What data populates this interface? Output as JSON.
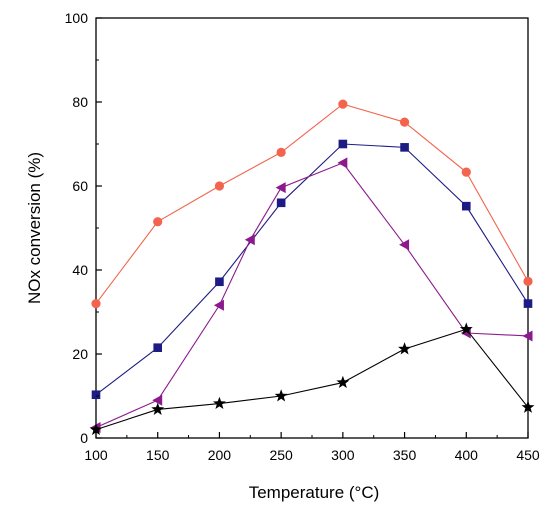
{
  "chart_data": {
    "type": "line",
    "title": "",
    "xlabel": "Temperature (°C)",
    "ylabel": "NOx conversion (%)",
    "xlim": [
      100,
      450
    ],
    "ylim": [
      0,
      100
    ],
    "xticks": [
      100,
      150,
      200,
      250,
      300,
      350,
      400,
      450
    ],
    "yticks": [
      0,
      20,
      40,
      60,
      80,
      100
    ],
    "grid": false,
    "legend": "none",
    "series": [
      {
        "color": "#f2644e",
        "marker": "circle",
        "x": [
          100,
          150,
          200,
          250,
          300,
          350,
          400,
          450
        ],
        "y": [
          32.0,
          51.5,
          60.0,
          68.0,
          79.5,
          75.2,
          63.3,
          37.3
        ]
      },
      {
        "color": "#1c1c84",
        "marker": "square",
        "x": [
          100,
          150,
          200,
          250,
          300,
          350,
          400,
          450
        ],
        "y": [
          10.3,
          21.5,
          37.2,
          56.0,
          70.0,
          69.2,
          55.2,
          32.0
        ]
      },
      {
        "color": "#8c1a8c",
        "marker": "triangle-left",
        "x": [
          100,
          150,
          200,
          225,
          250,
          300,
          350,
          400,
          450
        ],
        "y": [
          2.5,
          9.0,
          31.6,
          47.2,
          59.6,
          65.5,
          46.0,
          25.0,
          24.3
        ]
      },
      {
        "color": "#000000",
        "marker": "star",
        "x": [
          100,
          150,
          200,
          250,
          300,
          350,
          400,
          450
        ],
        "y": [
          2.0,
          6.8,
          8.2,
          10.0,
          13.2,
          21.2,
          25.9,
          7.3
        ]
      }
    ]
  }
}
